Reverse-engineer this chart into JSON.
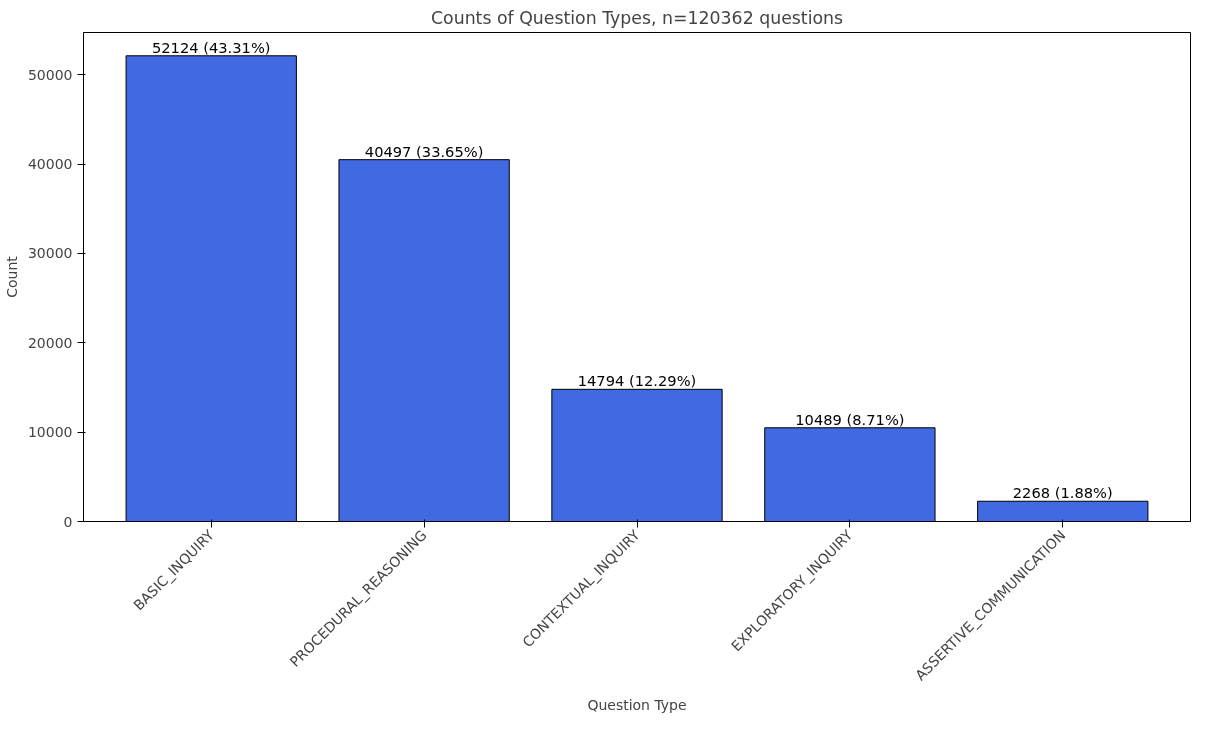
{
  "chart_data": {
    "type": "bar",
    "title": "Counts of Question Types, n=120362 questions",
    "xlabel": "Question Type",
    "ylabel": "Count",
    "categories": [
      "BASIC_INQUIRY",
      "PROCEDURAL_REASONING",
      "CONTEXTUAL_INQUIRY",
      "EXPLORATORY_INQUIRY",
      "ASSERTIVE_COMMUNICATION"
    ],
    "values": [
      52124,
      40497,
      14794,
      10489,
      2268
    ],
    "value_labels": [
      "52124 (43.31%)",
      "40497 (33.65%)",
      "14794 (12.29%)",
      "10489 (8.71%)",
      "2268 (1.88%)"
    ],
    "color": "#4169e1",
    "ylim": [
      0,
      54730
    ],
    "yticks": [
      0,
      10000,
      20000,
      30000,
      40000,
      50000
    ],
    "grid": false
  }
}
